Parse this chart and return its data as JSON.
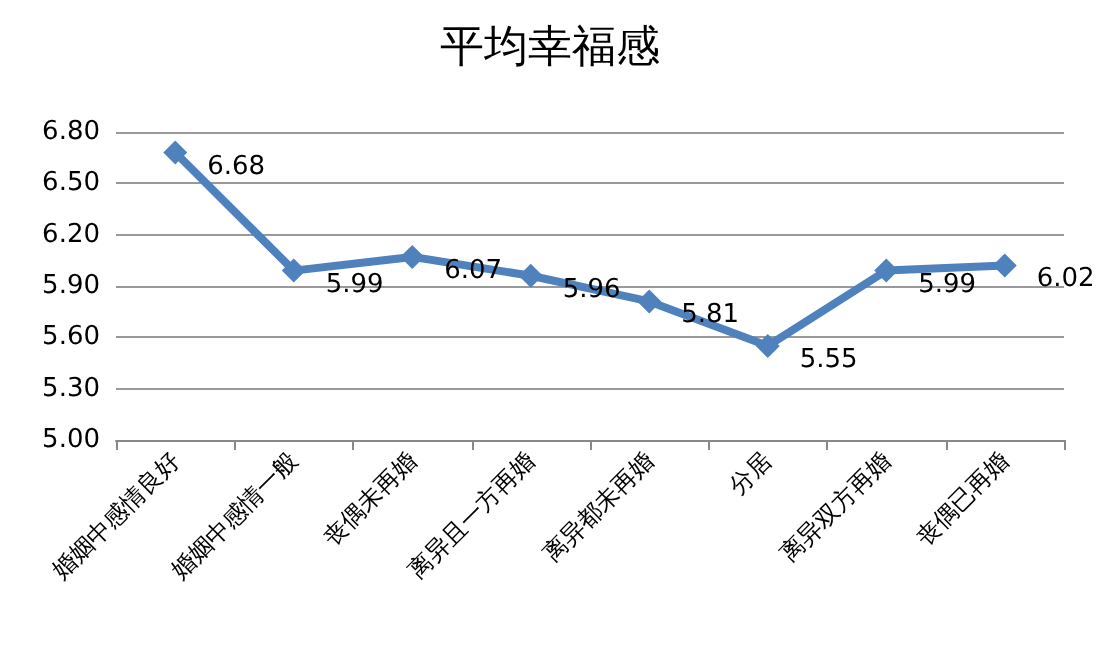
{
  "chart_data": {
    "type": "line",
    "title": "平均幸福感",
    "categories": [
      "婚姻中感情良好",
      "婚姻中感情一般",
      "丧偶未再婚",
      "离异且一方再婚",
      "离异都未再婚",
      "分居",
      "离异双方再婚",
      "丧偶已再婚"
    ],
    "values": [
      6.68,
      5.99,
      6.07,
      5.96,
      5.81,
      5.55,
      5.99,
      6.02
    ],
    "color": "#4f81bd",
    "ylim": [
      5.0,
      6.8
    ],
    "yticks": [
      {
        "value": 5.0,
        "label": "5.00"
      },
      {
        "value": 5.3,
        "label": "5.30"
      },
      {
        "value": 5.6,
        "label": "5.60"
      },
      {
        "value": 5.9,
        "label": "5.90"
      },
      {
        "value": 6.2,
        "label": "6.20"
      },
      {
        "value": 6.5,
        "label": "6.50"
      },
      {
        "value": 6.8,
        "label": "6.80"
      }
    ],
    "grid": "y",
    "marker": "diamond",
    "line_style": "solid",
    "data_labels": true
  }
}
